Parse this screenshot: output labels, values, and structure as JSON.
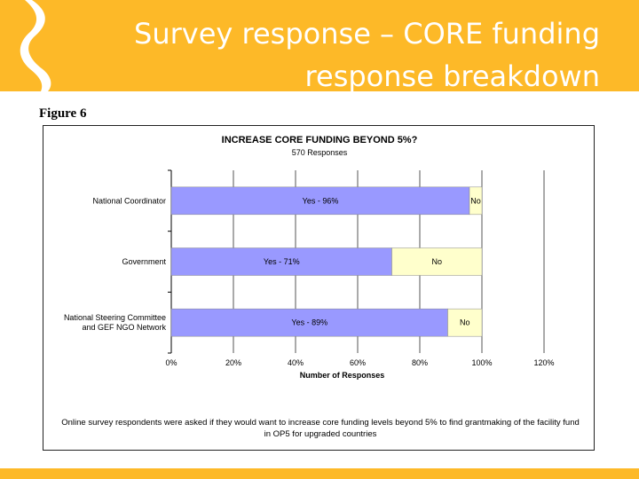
{
  "slide": {
    "title_line1": "Survey response – CORE funding",
    "title_line2": "response breakdown",
    "figure_label": "Figure 6",
    "caption_line1": "Online survey respondents were asked if they would want to increase core funding levels beyond 5% to find grantmaking of the facility fund",
    "caption_line2": "in OP5 for upgraded countries",
    "colors": {
      "band": "#fdb928",
      "yes": "#9999ff",
      "no": "#ffffcc"
    }
  },
  "chart_data": {
    "type": "bar",
    "orientation": "horizontal",
    "stacked": true,
    "title": "INCREASE CORE FUNDING BEYOND 5%?",
    "subtitle": "570 Responses",
    "xlabel": "Number of Responses",
    "ylabel": "",
    "xlim": [
      0,
      120
    ],
    "xticks": [
      "0%",
      "20%",
      "40%",
      "60%",
      "80%",
      "100%",
      "120%"
    ],
    "grid": true,
    "categories": [
      "National Coordinator",
      "Government",
      "National Steering Committee and GEF NGO Network"
    ],
    "category_lines": [
      [
        "National Coordinator"
      ],
      [
        "Government"
      ],
      [
        "National Steering Committee",
        "and GEF NGO Network"
      ]
    ],
    "series": [
      {
        "values": [
          96,
          71,
          89
        ],
        "labels": [
          "Yes - 96%",
          "Yes - 71%",
          "Yes - 89%"
        ],
        "color": "#9999ff"
      },
      {
        "values": [
          4,
          29,
          11
        ],
        "labels": [
          "No",
          "No",
          "No"
        ],
        "color": "#ffffcc"
      }
    ]
  }
}
